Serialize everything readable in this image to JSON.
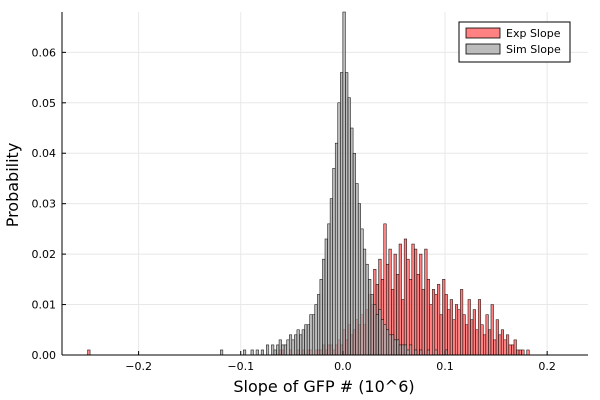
{
  "chart_data": {
    "type": "bar",
    "xlabel": "Slope of GFP # (10^6)",
    "ylabel": "Probability",
    "xlim": [
      -0.275,
      0.24
    ],
    "ylim": [
      0,
      0.068
    ],
    "grid": true,
    "legend_position": "top-right",
    "x_ticks": [
      -0.2,
      -0.1,
      0.0,
      0.1,
      0.2
    ],
    "x_tick_labels": [
      "−0.2",
      "−0.1",
      "0.0",
      "0.1",
      "0.2"
    ],
    "y_ticks": [
      0.0,
      0.01,
      0.02,
      0.03,
      0.04,
      0.05,
      0.06
    ],
    "y_tick_labels": [
      "0.00",
      "0.01",
      "0.02",
      "0.03",
      "0.04",
      "0.05",
      "0.06"
    ],
    "bin_width": 0.0025,
    "colors": {
      "exp": "#ff6b6b",
      "sim": "#a6a6a6",
      "edge": "#000000",
      "grid": "#e8e8e8",
      "axis": "#000000"
    },
    "series": [
      {
        "name": "Exp Slope",
        "color": "#ff6b6b",
        "bins": [
          [
            -0.25,
            0.001
          ],
          [
            -0.0625,
            0.001
          ],
          [
            -0.06,
            0.001
          ],
          [
            -0.0525,
            0.001
          ],
          [
            -0.045,
            0.001
          ],
          [
            -0.04,
            0.001
          ],
          [
            -0.035,
            0.001
          ],
          [
            -0.0325,
            0.001
          ],
          [
            -0.0275,
            0.001
          ],
          [
            -0.025,
            0.001
          ],
          [
            -0.0225,
            0.001
          ],
          [
            -0.02,
            0.002
          ],
          [
            -0.0175,
            0.001
          ],
          [
            -0.015,
            0.002
          ],
          [
            -0.0125,
            0.002
          ],
          [
            -0.01,
            0.001
          ],
          [
            -0.0075,
            0.002
          ],
          [
            -0.005,
            0.003
          ],
          [
            -0.0025,
            0.002
          ],
          [
            0.0,
            0.005
          ],
          [
            0.0025,
            0.003
          ],
          [
            0.005,
            0.006
          ],
          [
            0.0075,
            0.004
          ],
          [
            0.01,
            0.005
          ],
          [
            0.0125,
            0.007
          ],
          [
            0.015,
            0.006
          ],
          [
            0.0175,
            0.008
          ],
          [
            0.02,
            0.006
          ],
          [
            0.0225,
            0.009
          ],
          [
            0.025,
            0.012
          ],
          [
            0.0275,
            0.01
          ],
          [
            0.03,
            0.017
          ],
          [
            0.0325,
            0.014
          ],
          [
            0.035,
            0.019
          ],
          [
            0.0375,
            0.015
          ],
          [
            0.04,
            0.026
          ],
          [
            0.0425,
            0.018
          ],
          [
            0.045,
            0.021
          ],
          [
            0.0475,
            0.013
          ],
          [
            0.05,
            0.02
          ],
          [
            0.0525,
            0.016
          ],
          [
            0.055,
            0.022
          ],
          [
            0.0575,
            0.011
          ],
          [
            0.06,
            0.023
          ],
          [
            0.0625,
            0.019
          ],
          [
            0.065,
            0.015
          ],
          [
            0.0675,
            0.022
          ],
          [
            0.07,
            0.021
          ],
          [
            0.0725,
            0.016
          ],
          [
            0.075,
            0.02
          ],
          [
            0.0775,
            0.013
          ],
          [
            0.08,
            0.021
          ],
          [
            0.0825,
            0.015
          ],
          [
            0.085,
            0.01
          ],
          [
            0.0875,
            0.013
          ],
          [
            0.09,
            0.012
          ],
          [
            0.0925,
            0.014
          ],
          [
            0.095,
            0.008
          ],
          [
            0.0975,
            0.015
          ],
          [
            0.1,
            0.012
          ],
          [
            0.1025,
            0.009
          ],
          [
            0.105,
            0.011
          ],
          [
            0.1075,
            0.007
          ],
          [
            0.11,
            0.01
          ],
          [
            0.1125,
            0.009
          ],
          [
            0.115,
            0.013
          ],
          [
            0.1175,
            0.008
          ],
          [
            0.12,
            0.006
          ],
          [
            0.1225,
            0.011
          ],
          [
            0.125,
            0.007
          ],
          [
            0.1275,
            0.009
          ],
          [
            0.13,
            0.005
          ],
          [
            0.1325,
            0.011
          ],
          [
            0.135,
            0.006
          ],
          [
            0.1375,
            0.004
          ],
          [
            0.14,
            0.008
          ],
          [
            0.1425,
            0.005
          ],
          [
            0.145,
            0.01
          ],
          [
            0.1475,
            0.003
          ],
          [
            0.15,
            0.007
          ],
          [
            0.1525,
            0.004
          ],
          [
            0.155,
            0.005
          ],
          [
            0.1575,
            0.003
          ],
          [
            0.16,
            0.004
          ],
          [
            0.1625,
            0.002
          ],
          [
            0.165,
            0.002
          ],
          [
            0.1675,
            0.003
          ],
          [
            0.17,
            0.001
          ],
          [
            0.1725,
            0.001
          ],
          [
            0.175,
            0.001
          ],
          [
            0.18,
            0.001
          ]
        ]
      },
      {
        "name": "Sim Slope",
        "color": "#a6a6a6",
        "bins": [
          [
            -0.12,
            0.001
          ],
          [
            -0.0975,
            0.001
          ],
          [
            -0.09,
            0.001
          ],
          [
            -0.085,
            0.001
          ],
          [
            -0.08,
            0.001
          ],
          [
            -0.075,
            0.002
          ],
          [
            -0.07,
            0.002
          ],
          [
            -0.0675,
            0.001
          ],
          [
            -0.065,
            0.002
          ],
          [
            -0.0625,
            0.003
          ],
          [
            -0.06,
            0.002
          ],
          [
            -0.0575,
            0.002
          ],
          [
            -0.055,
            0.003
          ],
          [
            -0.0525,
            0.004
          ],
          [
            -0.05,
            0.003
          ],
          [
            -0.0475,
            0.004
          ],
          [
            -0.045,
            0.005
          ],
          [
            -0.0425,
            0.004
          ],
          [
            -0.04,
            0.005
          ],
          [
            -0.0375,
            0.006
          ],
          [
            -0.035,
            0.006
          ],
          [
            -0.0325,
            0.008
          ],
          [
            -0.03,
            0.008
          ],
          [
            -0.0275,
            0.01
          ],
          [
            -0.025,
            0.012
          ],
          [
            -0.0225,
            0.015
          ],
          [
            -0.02,
            0.019
          ],
          [
            -0.0175,
            0.023
          ],
          [
            -0.015,
            0.026
          ],
          [
            -0.0125,
            0.031
          ],
          [
            -0.01,
            0.037
          ],
          [
            -0.0075,
            0.042
          ],
          [
            -0.005,
            0.05
          ],
          [
            -0.0025,
            0.056
          ],
          [
            0.0,
            0.068
          ],
          [
            0.0025,
            0.056
          ],
          [
            0.005,
            0.051
          ],
          [
            0.0075,
            0.045
          ],
          [
            0.01,
            0.04
          ],
          [
            0.0125,
            0.034
          ],
          [
            0.015,
            0.03
          ],
          [
            0.0175,
            0.025
          ],
          [
            0.02,
            0.021
          ],
          [
            0.0225,
            0.018
          ],
          [
            0.025,
            0.015
          ],
          [
            0.0275,
            0.012
          ],
          [
            0.03,
            0.01
          ],
          [
            0.0325,
            0.008
          ],
          [
            0.035,
            0.009
          ],
          [
            0.0375,
            0.007
          ],
          [
            0.04,
            0.006
          ],
          [
            0.0425,
            0.005
          ],
          [
            0.045,
            0.004
          ],
          [
            0.0475,
            0.004
          ],
          [
            0.05,
            0.003
          ],
          [
            0.0525,
            0.003
          ],
          [
            0.055,
            0.002
          ],
          [
            0.0575,
            0.002
          ],
          [
            0.06,
            0.002
          ],
          [
            0.0625,
            0.001
          ],
          [
            0.065,
            0.002
          ],
          [
            0.07,
            0.001
          ],
          [
            0.075,
            0.001
          ],
          [
            0.0825,
            0.001
          ],
          [
            0.09,
            0.001
          ],
          [
            0.1,
            0.001
          ]
        ]
      }
    ]
  }
}
